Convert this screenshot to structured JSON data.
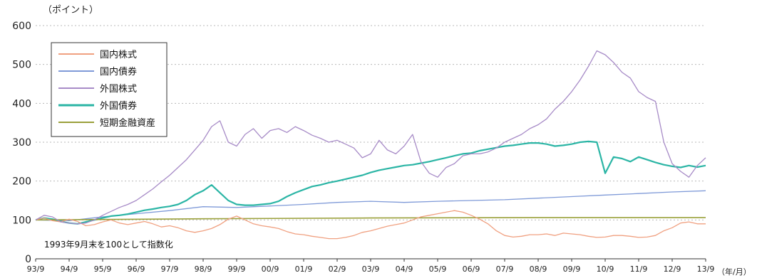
{
  "chart_data": {
    "type": "line",
    "ylabel": "（ポイント）",
    "xunit": "（年/月）",
    "note": "1993年9月末を100として指数化",
    "ylim": [
      0,
      600
    ],
    "yticks": [
      "0",
      "100",
      "200",
      "300",
      "400",
      "500",
      "600"
    ],
    "x_tick_labels": [
      "93/9",
      "94/9",
      "95/9",
      "96/9",
      "97/9",
      "98/9",
      "99/9",
      "00/9",
      "01/9",
      "02/9",
      "03/9",
      "04/9",
      "05/9",
      "06/9",
      "07/9",
      "08/9",
      "09/9",
      "10/9",
      "11/9",
      "12/9",
      "13/9"
    ],
    "grid": true,
    "legend_position": "top-left",
    "series": [
      {
        "name": "国内株式",
        "color": "#f0a080",
        "x": [
          0,
          0.25,
          0.5,
          0.75,
          1,
          1.25,
          1.5,
          1.75,
          2,
          2.25,
          2.5,
          2.75,
          3,
          3.25,
          3.5,
          3.75,
          4,
          4.25,
          4.5,
          4.75,
          5,
          5.25,
          5.5,
          5.75,
          6,
          6.25,
          6.5,
          6.75,
          7,
          7.25,
          7.5,
          7.75,
          8,
          8.25,
          8.5,
          8.75,
          9,
          9.25,
          9.5,
          9.75,
          10,
          10.25,
          10.5,
          10.75,
          11,
          11.25,
          11.5,
          11.75,
          12,
          12.25,
          12.5,
          12.75,
          13,
          13.25,
          13.5,
          13.75,
          14,
          14.25,
          14.5,
          14.75,
          15,
          15.25,
          15.5,
          15.75,
          16,
          16.25,
          16.5,
          16.75,
          17,
          17.25,
          17.5,
          17.75,
          18,
          18.25,
          18.5,
          18.75,
          19,
          19.25,
          19.5,
          19.75,
          20
        ],
        "values": [
          100,
          105,
          98,
          95,
          102,
          96,
          85,
          88,
          95,
          100,
          92,
          88,
          92,
          96,
          90,
          82,
          85,
          80,
          72,
          68,
          72,
          78,
          88,
          102,
          110,
          100,
          90,
          85,
          82,
          78,
          70,
          64,
          62,
          58,
          55,
          52,
          52,
          55,
          60,
          68,
          72,
          78,
          84,
          88,
          92,
          100,
          108,
          112,
          116,
          120,
          124,
          120,
          112,
          102,
          90,
          72,
          60,
          56,
          58,
          62,
          62,
          64,
          60,
          66,
          64,
          62,
          58,
          55,
          56,
          60,
          60,
          58,
          55,
          56,
          60,
          72,
          80,
          92,
          95,
          90,
          90
        ]
      },
      {
        "name": "国内債券",
        "color": "#7f9ad8",
        "x": [
          0,
          1,
          2,
          3,
          4,
          5,
          6,
          7,
          8,
          9,
          10,
          11,
          12,
          13,
          14,
          15,
          16,
          17,
          18,
          19,
          20
        ],
        "values": [
          100,
          98,
          108,
          116,
          124,
          134,
          132,
          136,
          140,
          145,
          148,
          145,
          148,
          150,
          152,
          156,
          160,
          164,
          168,
          172,
          175
        ]
      },
      {
        "name": "外国株式",
        "color": "#a78bc7",
        "x": [
          0,
          0.25,
          0.5,
          0.75,
          1,
          1.25,
          1.5,
          1.75,
          2,
          2.25,
          2.5,
          2.75,
          3,
          3.25,
          3.5,
          3.75,
          4,
          4.25,
          4.5,
          4.75,
          5,
          5.25,
          5.5,
          5.75,
          6,
          6.25,
          6.5,
          6.75,
          7,
          7.25,
          7.5,
          7.75,
          8,
          8.25,
          8.5,
          8.75,
          9,
          9.25,
          9.5,
          9.75,
          10,
          10.25,
          10.5,
          10.75,
          11,
          11.25,
          11.5,
          11.75,
          12,
          12.25,
          12.5,
          12.75,
          13,
          13.25,
          13.5,
          13.75,
          14,
          14.25,
          14.5,
          14.75,
          15,
          15.25,
          15.5,
          15.75,
          16,
          16.25,
          16.5,
          16.75,
          17,
          17.25,
          17.5,
          17.75,
          18,
          18.25,
          18.5,
          18.75,
          19,
          19.25,
          19.5,
          19.75,
          20
        ],
        "values": [
          100,
          112,
          108,
          95,
          92,
          90,
          92,
          100,
          112,
          122,
          132,
          140,
          150,
          165,
          180,
          198,
          215,
          235,
          255,
          280,
          305,
          340,
          355,
          300,
          290,
          320,
          335,
          310,
          330,
          335,
          325,
          340,
          330,
          318,
          310,
          300,
          305,
          295,
          285,
          260,
          270,
          305,
          280,
          270,
          290,
          320,
          250,
          220,
          210,
          235,
          245,
          265,
          270,
          270,
          275,
          285,
          300,
          310,
          320,
          335,
          345,
          360,
          385,
          405,
          430,
          460,
          495,
          535,
          525,
          505,
          480,
          465,
          430,
          415,
          405,
          300,
          245,
          225,
          210,
          240,
          260
        ]
      },
      {
        "name": "外国債券",
        "color": "#2bb5a5",
        "x": [
          0,
          0.25,
          0.5,
          0.75,
          1,
          1.25,
          1.5,
          1.75,
          2,
          2.25,
          2.5,
          2.75,
          3,
          3.25,
          3.5,
          3.75,
          4,
          4.25,
          4.5,
          4.75,
          5,
          5.25,
          5.5,
          5.75,
          6,
          6.25,
          6.5,
          6.75,
          7,
          7.25,
          7.5,
          7.75,
          8,
          8.25,
          8.5,
          8.75,
          9,
          9.25,
          9.5,
          9.75,
          10,
          10.25,
          10.5,
          10.75,
          11,
          11.25,
          11.5,
          11.75,
          12,
          12.25,
          12.5,
          12.75,
          13,
          13.25,
          13.5,
          13.75,
          14,
          14.25,
          14.5,
          14.75,
          15,
          15.25,
          15.5,
          15.75,
          16,
          16.25,
          16.5,
          16.75,
          17,
          17.25,
          17.5,
          17.75,
          18,
          18.25,
          18.5,
          18.75,
          19,
          19.25,
          19.5,
          19.75,
          20
        ],
        "values": [
          100,
          105,
          102,
          96,
          92,
          90,
          95,
          100,
          105,
          110,
          112,
          115,
          120,
          125,
          128,
          132,
          135,
          140,
          150,
          165,
          175,
          190,
          170,
          150,
          140,
          138,
          138,
          140,
          142,
          148,
          160,
          170,
          178,
          186,
          190,
          196,
          200,
          205,
          210,
          215,
          222,
          228,
          232,
          236,
          240,
          242,
          246,
          250,
          255,
          260,
          265,
          270,
          272,
          278,
          282,
          286,
          290,
          292,
          295,
          298,
          298,
          295,
          290,
          292,
          295,
          300,
          302,
          300,
          220,
          262,
          258,
          250,
          262,
          255,
          248,
          242,
          238,
          235,
          240,
          236,
          240
        ]
      },
      {
        "name": "短期金融資産",
        "color": "#9aa03a",
        "x": [
          0,
          5,
          10,
          15,
          20
        ],
        "values": [
          100,
          103,
          105,
          106,
          106
        ]
      }
    ]
  }
}
